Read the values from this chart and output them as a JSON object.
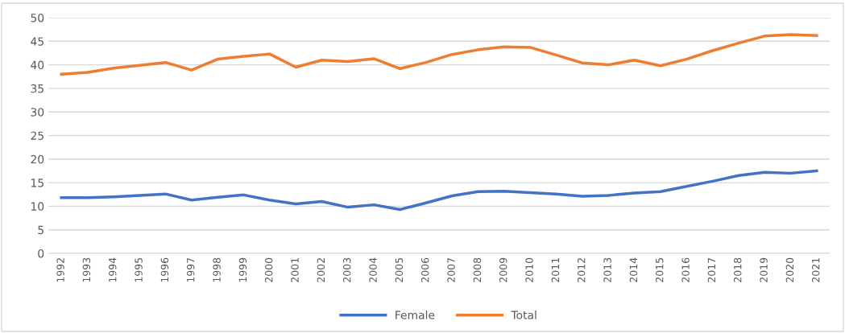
{
  "chart_data": {
    "type": "line",
    "categories": [
      "1992",
      "1993",
      "1994",
      "1995",
      "1996",
      "1997",
      "1998",
      "1999",
      "2000",
      "2001",
      "2002",
      "2003",
      "2004",
      "2005",
      "2006",
      "2007",
      "2008",
      "2009",
      "2010",
      "2011",
      "2012",
      "2013",
      "2014",
      "2015",
      "2016",
      "2017",
      "2018",
      "2019",
      "2020",
      "2021"
    ],
    "series": [
      {
        "name": "Female",
        "color": "#4472c4",
        "values": [
          11.8,
          11.8,
          12.0,
          12.3,
          12.6,
          11.3,
          11.9,
          12.4,
          11.3,
          10.5,
          11.0,
          9.8,
          10.3,
          9.3,
          10.7,
          12.2,
          13.1,
          13.2,
          12.9,
          12.6,
          12.1,
          12.3,
          12.8,
          13.1,
          14.2,
          15.3,
          16.5,
          17.2,
          17.0,
          17.5
        ]
      },
      {
        "name": "Total",
        "color": "#ed7d31",
        "values": [
          38.0,
          38.4,
          39.3,
          39.9,
          40.5,
          38.9,
          41.2,
          41.8,
          42.3,
          39.5,
          41.0,
          40.7,
          41.3,
          39.2,
          40.5,
          42.2,
          43.2,
          43.8,
          43.7,
          42.1,
          40.4,
          40.0,
          41.0,
          39.8,
          41.2,
          43.0,
          44.6,
          46.1,
          46.4,
          46.2
        ]
      }
    ],
    "ylim": [
      0,
      50
    ],
    "yticks": [
      0,
      5,
      10,
      15,
      20,
      25,
      30,
      35,
      40,
      45,
      50
    ],
    "grid": "y",
    "legend": "bottom",
    "marker": "none",
    "line_style": "solid"
  }
}
